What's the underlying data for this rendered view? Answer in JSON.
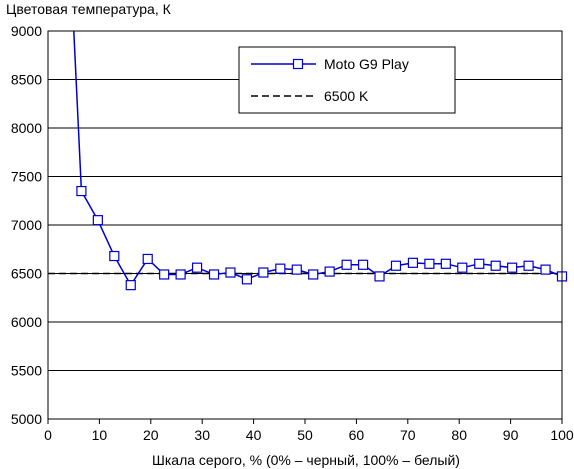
{
  "chart_data": {
    "type": "line",
    "title": "Цветовая температура, К",
    "xlabel": "Шкала серого, % (0% – черный, 100% – белый)",
    "ylabel": "",
    "xlim": [
      0,
      100
    ],
    "ylim": [
      5000,
      9000
    ],
    "xticks": [
      0,
      10,
      20,
      30,
      40,
      50,
      60,
      70,
      80,
      90,
      100
    ],
    "yticks": [
      5000,
      5500,
      6000,
      6500,
      7000,
      7500,
      8000,
      8500,
      9000
    ],
    "grid": "horizontal",
    "legend_position": "top-right",
    "series": [
      {
        "name": "Moto G9 Play",
        "color": "#0000cc",
        "marker": "square",
        "x": [
          5,
          6.5,
          9.7,
          12.9,
          16.1,
          19.4,
          22.6,
          25.8,
          29,
          32.3,
          35.5,
          38.7,
          41.9,
          45.2,
          48.4,
          51.6,
          54.8,
          58.1,
          61.3,
          64.5,
          67.7,
          71,
          74.2,
          77.4,
          80.6,
          83.9,
          87.1,
          90.3,
          93.5,
          96.8,
          100
        ],
        "y": [
          9020,
          7350,
          7050,
          6680,
          6380,
          6650,
          6490,
          6490,
          6560,
          6490,
          6510,
          6440,
          6510,
          6550,
          6540,
          6490,
          6520,
          6590,
          6590,
          6470,
          6580,
          6610,
          6600,
          6600,
          6560,
          6600,
          6580,
          6560,
          6580,
          6540,
          6470
        ]
      },
      {
        "name": "6500 K",
        "color": "#000000",
        "dashed": true,
        "x": [
          0,
          100
        ],
        "y": [
          6500,
          6500
        ]
      }
    ]
  }
}
